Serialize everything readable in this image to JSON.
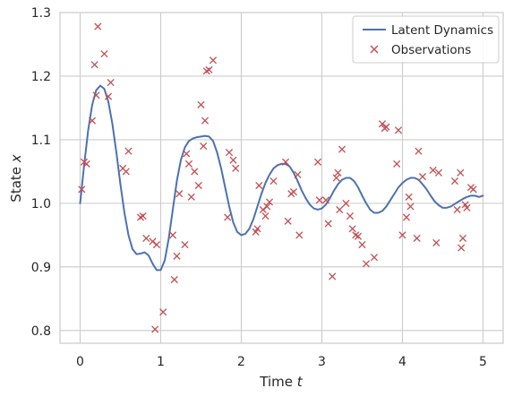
{
  "chart_data": {
    "type": "line",
    "title": "",
    "xlabel": "Time",
    "xlabel_var": "t",
    "ylabel": "State",
    "ylabel_var": "x",
    "xlim": [
      -0.25,
      5.25
    ],
    "ylim": [
      0.78,
      1.3
    ],
    "xticks": [
      0,
      1,
      2,
      3,
      4,
      5
    ],
    "yticks": [
      0.8,
      0.9,
      1.0,
      1.1,
      1.2,
      1.3
    ],
    "xtick_labels": [
      "0",
      "1",
      "2",
      "3",
      "4",
      "5"
    ],
    "ytick_labels": [
      "0.8",
      "0.9",
      "1.0",
      "1.1",
      "1.2",
      "1.3"
    ],
    "grid": true,
    "legend_position": "top-right",
    "series": [
      {
        "name": "Latent Dynamics",
        "kind": "line",
        "color": "#4C72B0",
        "x": [
          0,
          0.05,
          0.1,
          0.15,
          0.2,
          0.25,
          0.3,
          0.35,
          0.4,
          0.45,
          0.5,
          0.55,
          0.6,
          0.65,
          0.7,
          0.75,
          0.8,
          0.85,
          0.9,
          0.95,
          1.0,
          1.05,
          1.1,
          1.15,
          1.2,
          1.25,
          1.3,
          1.35,
          1.4,
          1.45,
          1.5,
          1.55,
          1.6,
          1.65,
          1.7,
          1.75,
          1.8,
          1.85,
          1.9,
          1.95,
          2.0,
          2.05,
          2.1,
          2.15,
          2.2,
          2.25,
          2.3,
          2.35,
          2.4,
          2.45,
          2.5,
          2.55,
          2.6,
          2.65,
          2.7,
          2.75,
          2.8,
          2.85,
          2.9,
          2.95,
          3.0,
          3.05,
          3.1,
          3.15,
          3.2,
          3.25,
          3.3,
          3.35,
          3.4,
          3.45,
          3.5,
          3.55,
          3.6,
          3.65,
          3.7,
          3.75,
          3.8,
          3.85,
          3.9,
          3.95,
          4.0,
          4.05,
          4.1,
          4.15,
          4.2,
          4.25,
          4.3,
          4.35,
          4.4,
          4.45,
          4.5,
          4.55,
          4.6,
          4.65,
          4.7,
          4.75,
          4.8,
          4.85,
          4.9,
          4.95,
          5.0
        ],
        "y": [
          1.0,
          1.06,
          1.115,
          1.155,
          1.178,
          1.185,
          1.18,
          1.16,
          1.125,
          1.08,
          1.03,
          0.985,
          0.95,
          0.928,
          0.92,
          0.921,
          0.923,
          0.918,
          0.905,
          0.895,
          0.895,
          0.91,
          0.945,
          0.99,
          1.035,
          1.068,
          1.088,
          1.098,
          1.102,
          1.104,
          1.105,
          1.106,
          1.105,
          1.098,
          1.08,
          1.055,
          1.025,
          0.995,
          0.97,
          0.955,
          0.95,
          0.952,
          0.96,
          0.975,
          0.995,
          1.015,
          1.032,
          1.045,
          1.055,
          1.06,
          1.062,
          1.062,
          1.058,
          1.048,
          1.035,
          1.02,
          1.008,
          0.998,
          0.992,
          0.99,
          0.992,
          0.998,
          1.008,
          1.02,
          1.03,
          1.037,
          1.04,
          1.04,
          1.035,
          1.025,
          1.012,
          1.0,
          0.99,
          0.985,
          0.985,
          0.988,
          0.995,
          1.005,
          1.015,
          1.025,
          1.032,
          1.037,
          1.04,
          1.04,
          1.037,
          1.03,
          1.022,
          1.012,
          1.003,
          0.997,
          0.993,
          0.993,
          0.995,
          0.999,
          1.003,
          1.007,
          1.01,
          1.012,
          1.012,
          1.01,
          1.012
        ]
      },
      {
        "name": "Observations",
        "kind": "scatter",
        "marker": "x",
        "color": "#C44E52",
        "x": [
          0.02,
          0.05,
          0.08,
          0.15,
          0.18,
          0.2,
          0.22,
          0.3,
          0.35,
          0.38,
          0.53,
          0.57,
          0.6,
          0.75,
          0.78,
          0.82,
          0.9,
          0.93,
          0.95,
          1.03,
          1.15,
          1.17,
          1.2,
          1.23,
          1.3,
          1.32,
          1.35,
          1.38,
          1.42,
          1.47,
          1.5,
          1.53,
          1.55,
          1.57,
          1.6,
          1.65,
          1.83,
          1.85,
          1.9,
          1.93,
          2.18,
          2.2,
          2.22,
          2.27,
          2.3,
          2.32,
          2.35,
          2.4,
          2.55,
          2.58,
          2.62,
          2.65,
          2.7,
          2.72,
          2.95,
          2.97,
          3.05,
          3.08,
          3.13,
          3.18,
          3.2,
          3.22,
          3.25,
          3.3,
          3.35,
          3.38,
          3.42,
          3.45,
          3.5,
          3.55,
          3.65,
          3.75,
          3.78,
          3.8,
          3.93,
          3.95,
          4.0,
          4.05,
          4.08,
          4.1,
          4.18,
          4.2,
          4.25,
          4.38,
          4.42,
          4.45,
          4.65,
          4.68,
          4.72,
          4.73,
          4.75,
          4.78,
          4.8,
          4.85,
          4.88
        ],
        "y": [
          1.022,
          1.065,
          1.062,
          1.13,
          1.218,
          1.17,
          1.278,
          1.235,
          1.168,
          1.19,
          1.055,
          1.05,
          1.082,
          0.978,
          0.98,
          0.945,
          0.94,
          0.802,
          0.935,
          0.829,
          0.95,
          0.88,
          0.917,
          1.015,
          0.935,
          1.078,
          1.062,
          1.01,
          1.05,
          1.028,
          1.155,
          1.09,
          1.13,
          1.208,
          1.21,
          1.225,
          0.978,
          1.08,
          1.068,
          1.055,
          0.955,
          0.96,
          1.028,
          0.99,
          0.98,
          0.995,
          1.002,
          1.035,
          1.065,
          0.972,
          1.015,
          1.018,
          1.045,
          0.95,
          1.065,
          1.005,
          1.005,
          0.968,
          0.885,
          1.04,
          1.048,
          0.99,
          1.085,
          1.0,
          0.98,
          0.96,
          0.95,
          0.948,
          0.935,
          0.905,
          0.915,
          1.125,
          1.118,
          1.12,
          1.062,
          1.115,
          0.95,
          0.978,
          1.01,
          0.995,
          0.945,
          1.082,
          1.042,
          1.052,
          0.938,
          1.048,
          1.035,
          0.99,
          1.048,
          0.93,
          0.945,
          0.998,
          0.993,
          1.025,
          1.022
        ]
      }
    ]
  }
}
